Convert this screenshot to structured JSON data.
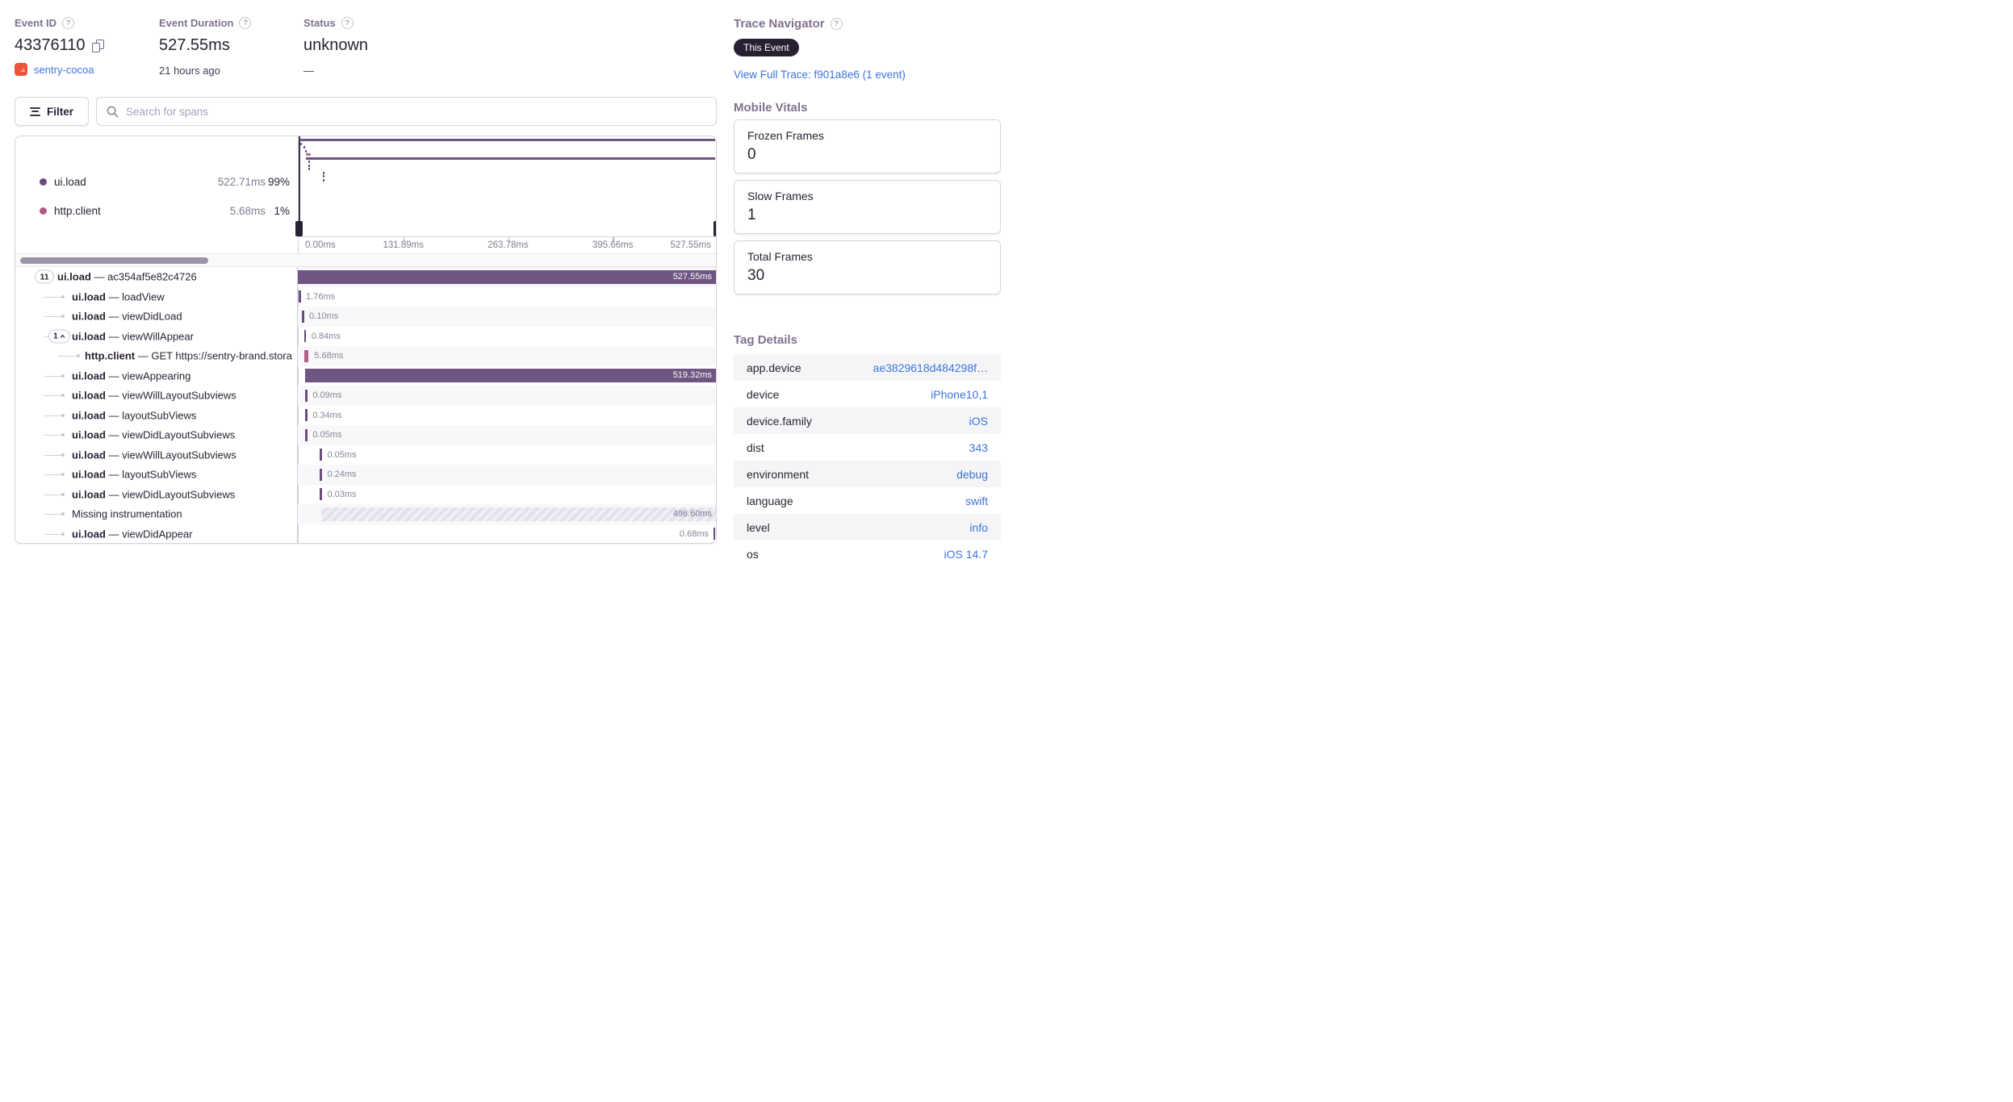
{
  "colors": {
    "purple_bar": "#6F5581",
    "pink_bar": "#B0618C",
    "link_blue": "#3D74DB",
    "badge_dark": "#272033",
    "swift_orange": "#F05138",
    "muted_label": "#80708F"
  },
  "header": {
    "event_id": {
      "label": "Event ID",
      "value": "43376110",
      "project": "sentry-cocoa"
    },
    "duration": {
      "label": "Event Duration",
      "value": "527.55ms",
      "ago": "21 hours ago"
    },
    "status": {
      "label": "Status",
      "value": "unknown",
      "sub": "—"
    }
  },
  "trace_navigator": {
    "label": "Trace Navigator",
    "badge": "This Event",
    "link": "View Full Trace: f901a8e6 (1 event)"
  },
  "toolbar": {
    "filter_label": "Filter",
    "search_placeholder": "Search for spans"
  },
  "legend": {
    "items": [
      {
        "label": "ui.load",
        "duration": "522.71ms",
        "pct": "99%",
        "color": "#694B7E"
      },
      {
        "label": "http.client",
        "duration": "5.68ms",
        "pct": "1%",
        "color": "#AF5A85"
      }
    ]
  },
  "axis": {
    "ticks": [
      "0.00ms",
      "131.89ms",
      "263.78ms",
      "395.66ms",
      "527.55ms"
    ]
  },
  "spans": {
    "rows": [
      {
        "pill": "11",
        "caret": false,
        "depth": 0,
        "op": "ui.load",
        "name": "ac354af5e82c4726",
        "kind": "bar",
        "left": 0,
        "dur": "527.55ms",
        "mini": {
          "kind": "line",
          "left": 0.2
        }
      },
      {
        "depth": 1,
        "op": "ui.load",
        "name": "loadView",
        "kind": "tick",
        "left": 0.2,
        "dur": "1.76ms",
        "mini": {
          "kind": "dash",
          "left": 0.3
        }
      },
      {
        "depth": 1,
        "op": "ui.load",
        "name": "viewDidLoad",
        "kind": "tick",
        "left": 1.0,
        "dur": "0.10ms",
        "mini": {
          "kind": "dash",
          "left": 1.2
        }
      },
      {
        "pill": "1",
        "caret": true,
        "depth": 1,
        "op": "ui.load",
        "name": "viewWillAppear",
        "kind": "tick",
        "left": 1.5,
        "dur": "0.84ms",
        "mini": {
          "kind": "dash",
          "left": 1.6
        }
      },
      {
        "depth": 2,
        "op": "http.client",
        "name": "GET https://sentry-brand.stora",
        "kind": "tick-pink",
        "left": 1.6,
        "dur": "5.68ms",
        "mini": {
          "kind": "pink",
          "left": 1.8
        }
      },
      {
        "depth": 1,
        "op": "ui.load",
        "name": "viewAppearing",
        "kind": "bar",
        "left": 1.7,
        "dur": "519.32ms",
        "mini": {
          "kind": "line",
          "left": 1.7
        }
      },
      {
        "depth": 1,
        "op": "ui.load",
        "name": "viewWillLayoutSubviews",
        "kind": "tick",
        "left": 1.8,
        "dur": "0.09ms",
        "mini": {
          "kind": "dash",
          "left": 2.3
        }
      },
      {
        "depth": 1,
        "op": "ui.load",
        "name": "layoutSubViews",
        "kind": "tick",
        "left": 1.8,
        "dur": "0.34ms",
        "mini": {
          "kind": "dash",
          "left": 2.3
        }
      },
      {
        "depth": 1,
        "op": "ui.load",
        "name": "viewDidLayoutSubviews",
        "kind": "tick",
        "left": 1.8,
        "dur": "0.05ms",
        "mini": {
          "kind": "dash",
          "left": 2.3
        }
      },
      {
        "depth": 1,
        "op": "ui.load",
        "name": "viewWillLayoutSubviews",
        "kind": "tick",
        "left": 5.3,
        "dur": "0.05ms",
        "mini": {
          "kind": "dash",
          "left": 5.8
        }
      },
      {
        "depth": 1,
        "op": "ui.load",
        "name": "layoutSubViews",
        "kind": "tick",
        "left": 5.3,
        "dur": "0.24ms",
        "mini": {
          "kind": "dash",
          "left": 5.8
        }
      },
      {
        "depth": 1,
        "op": "ui.load",
        "name": "viewDidLayoutSubviews",
        "kind": "tick",
        "left": 5.3,
        "dur": "0.03ms",
        "mini": {
          "kind": "dash",
          "left": 5.8
        }
      },
      {
        "depth": 1,
        "plain": "Missing instrumentation",
        "kind": "hatch",
        "left": 5.6,
        "dur": "496.60ms",
        "mini": null
      },
      {
        "depth": 1,
        "op": "ui.load",
        "name": "viewDidAppear",
        "kind": "tick-right",
        "dur": "0.68ms",
        "mini": null
      }
    ]
  },
  "vitals": {
    "title": "Mobile Vitals",
    "cards": [
      {
        "label": "Frozen Frames",
        "value": "0"
      },
      {
        "label": "Slow Frames",
        "value": "1"
      },
      {
        "label": "Total Frames",
        "value": "30"
      }
    ]
  },
  "tags": {
    "title": "Tag Details",
    "rows": [
      {
        "key": "app.device",
        "value": "ae3829618d484298f…"
      },
      {
        "key": "device",
        "value": "iPhone10,1"
      },
      {
        "key": "device.family",
        "value": "iOS"
      },
      {
        "key": "dist",
        "value": "343"
      },
      {
        "key": "environment",
        "value": "debug"
      },
      {
        "key": "language",
        "value": "swift"
      },
      {
        "key": "level",
        "value": "info"
      },
      {
        "key": "os",
        "value": "iOS 14.7"
      }
    ]
  }
}
